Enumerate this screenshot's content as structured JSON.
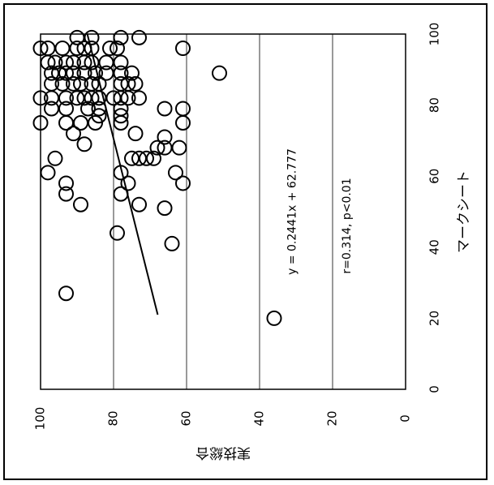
{
  "chart_data": {
    "type": "scatter",
    "orientation": "rotated-90-ccw",
    "xlabel": "マークシート",
    "ylabel": "実技総合",
    "xlim": [
      0,
      100
    ],
    "ylim": [
      0,
      100
    ],
    "xticks": [
      "0",
      "20",
      "40",
      "60",
      "80",
      "100"
    ],
    "yticks": [
      "0",
      "20",
      "40",
      "60",
      "80",
      "100"
    ],
    "grid": "horizontal at y ticks",
    "annotations": {
      "equation": "y = 0.2441x + 62.777",
      "correlation": "r=0.314, p<0.01"
    },
    "trendline": {
      "slope": 0.2441,
      "intercept": 62.777,
      "x_range": [
        21,
        100
      ]
    },
    "points": [
      [
        20,
        36
      ],
      [
        27,
        93
      ],
      [
        41,
        64
      ],
      [
        44,
        79
      ],
      [
        51,
        66
      ],
      [
        52,
        73
      ],
      [
        52,
        89
      ],
      [
        55,
        78
      ],
      [
        55,
        93
      ],
      [
        58,
        61
      ],
      [
        58,
        76
      ],
      [
        58,
        93
      ],
      [
        61,
        63
      ],
      [
        61,
        78
      ],
      [
        61,
        98
      ],
      [
        65,
        69
      ],
      [
        65,
        71
      ],
      [
        65,
        73
      ],
      [
        65,
        75
      ],
      [
        65,
        96
      ],
      [
        68,
        62
      ],
      [
        68,
        66
      ],
      [
        68,
        68
      ],
      [
        69,
        88
      ],
      [
        71,
        66
      ],
      [
        72,
        74
      ],
      [
        72,
        91
      ],
      [
        75,
        61
      ],
      [
        75,
        78
      ],
      [
        75,
        85
      ],
      [
        75,
        89
      ],
      [
        75,
        93
      ],
      [
        75,
        100
      ],
      [
        77,
        78
      ],
      [
        77,
        84
      ],
      [
        79,
        61
      ],
      [
        79,
        66
      ],
      [
        79,
        78
      ],
      [
        79,
        84
      ],
      [
        79,
        87
      ],
      [
        79,
        93
      ],
      [
        79,
        97
      ],
      [
        82,
        73
      ],
      [
        82,
        76
      ],
      [
        82,
        78
      ],
      [
        82,
        80
      ],
      [
        82,
        84
      ],
      [
        82,
        86
      ],
      [
        82,
        88
      ],
      [
        82,
        90
      ],
      [
        82,
        93
      ],
      [
        82,
        97
      ],
      [
        82,
        100
      ],
      [
        86,
        74
      ],
      [
        86,
        76
      ],
      [
        86,
        78
      ],
      [
        86,
        84
      ],
      [
        86,
        86
      ],
      [
        86,
        89
      ],
      [
        86,
        91
      ],
      [
        86,
        94
      ],
      [
        86,
        97
      ],
      [
        89,
        51
      ],
      [
        89,
        75
      ],
      [
        89,
        78
      ],
      [
        89,
        82
      ],
      [
        89,
        85
      ],
      [
        89,
        88
      ],
      [
        89,
        91
      ],
      [
        89,
        93
      ],
      [
        89,
        95
      ],
      [
        89,
        97
      ],
      [
        92,
        78
      ],
      [
        92,
        82
      ],
      [
        92,
        86
      ],
      [
        92,
        88
      ],
      [
        92,
        91
      ],
      [
        92,
        93
      ],
      [
        92,
        96
      ],
      [
        92,
        98
      ],
      [
        96,
        61
      ],
      [
        96,
        79
      ],
      [
        96,
        81
      ],
      [
        96,
        86
      ],
      [
        96,
        88
      ],
      [
        96,
        90
      ],
      [
        96,
        94
      ],
      [
        96,
        98
      ],
      [
        96,
        100
      ],
      [
        99,
        73
      ],
      [
        99,
        78
      ],
      [
        99,
        86
      ],
      [
        99,
        90
      ]
    ]
  }
}
